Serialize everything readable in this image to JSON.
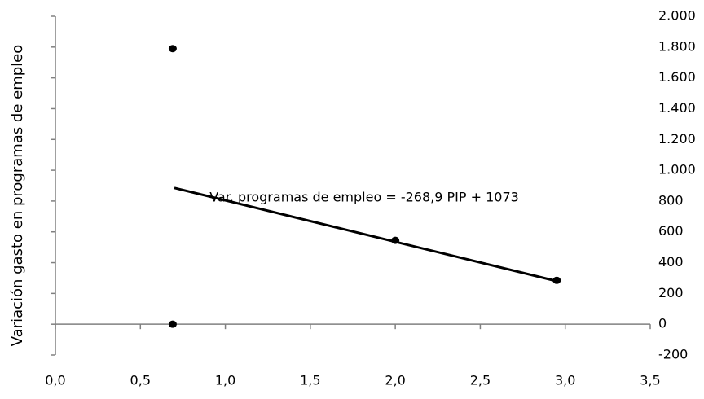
{
  "chart_data": {
    "type": "scatter",
    "y_label": "Variación gasto en programas de empleo",
    "annotation": "Var. programas de empleo = -268,9 PIP + 1073",
    "x": [
      0.69,
      0.69,
      2.0,
      2.95
    ],
    "values": [
      1790,
      0,
      545,
      285
    ],
    "color": "#000000",
    "trendline": {
      "x": [
        0.7,
        2.95
      ],
      "values": [
        885,
        280
      ],
      "color": "#000000"
    },
    "xlim": [
      0,
      3.5
    ],
    "xticks": [
      {
        "value": 0,
        "label": "0,0"
      },
      {
        "value": 0.5,
        "label": "0,5"
      },
      {
        "value": 1,
        "label": "1,0"
      },
      {
        "value": 1.5,
        "label": "1,5"
      },
      {
        "value": 2,
        "label": "2,0"
      },
      {
        "value": 2.5,
        "label": "2,5"
      },
      {
        "value": 3,
        "label": "3,0"
      },
      {
        "value": 3.5,
        "label": "3,5"
      }
    ],
    "ylim": [
      -200,
      2000
    ],
    "yticks": [
      -200,
      0,
      200,
      400,
      600,
      800,
      {
        "value": 1000,
        "label": "1.000"
      },
      {
        "value": 1200,
        "label": "1.200"
      },
      {
        "value": 1400,
        "label": "1.400"
      },
      {
        "value": 1600,
        "label": "1.600"
      },
      {
        "value": 1800,
        "label": "1.800"
      },
      {
        "value": 2000,
        "label": "2.000"
      }
    ]
  }
}
